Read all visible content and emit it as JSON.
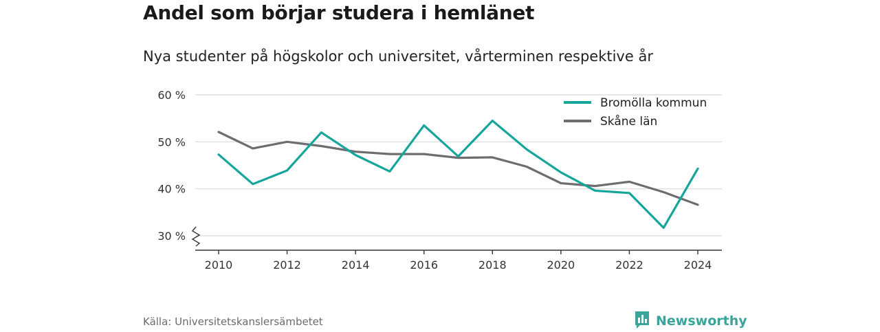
{
  "header": {
    "title": "Andel som börjar studera i hemlänet",
    "subtitle": "Nya studenter på högskolor och universitet, vårterminen respektive år"
  },
  "footer": {
    "source": "Källa: Universitetskanslersämbetet",
    "brand": "Newsworthy",
    "brand_icon": "newsworthy-logo-icon",
    "brand_color": "#3aa39a"
  },
  "chart_data": {
    "type": "line",
    "x": [
      2010,
      2011,
      2012,
      2013,
      2014,
      2015,
      2016,
      2017,
      2018,
      2019,
      2020,
      2021,
      2022,
      2023,
      2024
    ],
    "x_ticks": [
      2010,
      2012,
      2014,
      2016,
      2018,
      2020,
      2022,
      2024
    ],
    "y_ticks": [
      30,
      40,
      50,
      60
    ],
    "y_tick_labels": [
      "30 %",
      "40 %",
      "50 %",
      "60 %"
    ],
    "ylim": [
      30,
      60
    ],
    "y_axis_break": true,
    "grid": true,
    "legend_position": "top-right",
    "series": [
      {
        "name": "Bromölla kommun",
        "color": "#15a59a",
        "values": [
          47.3,
          41.0,
          43.9,
          52.0,
          47.2,
          43.7,
          53.5,
          46.9,
          54.5,
          48.4,
          43.5,
          39.6,
          39.1,
          31.7,
          44.3
        ]
      },
      {
        "name": "Skåne län",
        "color": "#6e6c70",
        "values": [
          52.1,
          48.6,
          50.0,
          49.1,
          47.9,
          47.4,
          47.4,
          46.6,
          46.7,
          44.7,
          41.2,
          40.6,
          41.5,
          39.3,
          36.6
        ]
      }
    ]
  }
}
